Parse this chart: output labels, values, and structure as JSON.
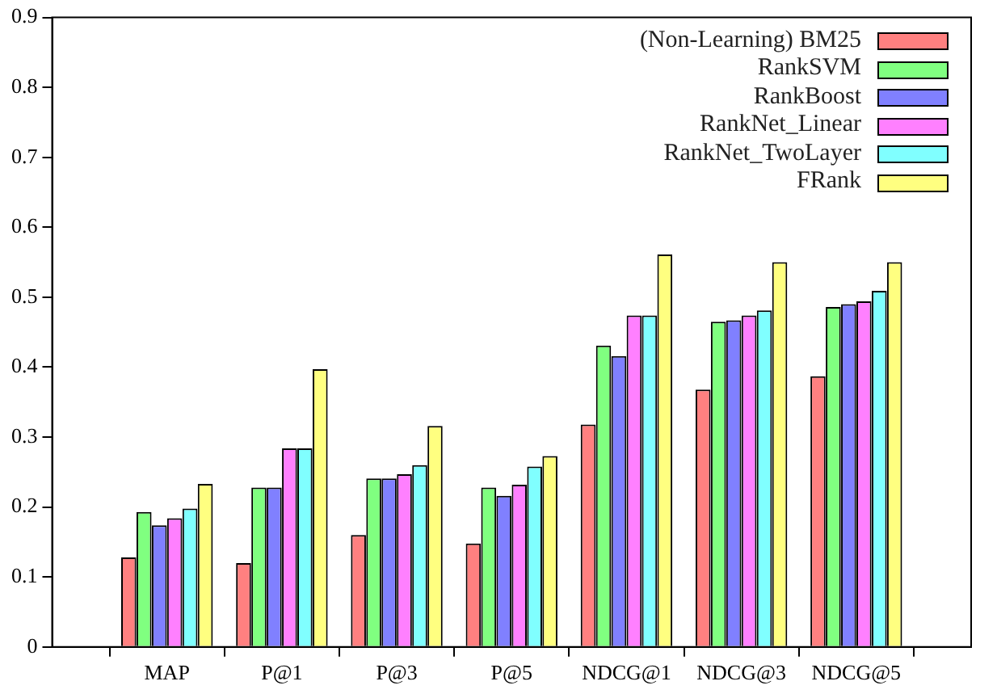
{
  "chart_data": {
    "type": "bar",
    "categories": [
      null,
      "MAP",
      "P@1",
      "P@3",
      "P@5",
      "NDCG@1",
      "NDCG@3",
      "NDCG@5",
      null
    ],
    "series": [
      {
        "name": "(Non-Learning) BM25",
        "color": "#ff8080",
        "values": [
          null,
          0.128,
          0.12,
          0.16,
          0.148,
          0.318,
          0.368,
          0.387,
          null
        ]
      },
      {
        "name": "RankSVM",
        "color": "#80ff80",
        "values": [
          null,
          0.193,
          0.228,
          0.241,
          0.228,
          0.431,
          0.465,
          0.486,
          null
        ]
      },
      {
        "name": "RankBoost",
        "color": "#8080ff",
        "values": [
          null,
          0.174,
          0.228,
          0.241,
          0.216,
          0.416,
          0.467,
          0.49,
          null
        ]
      },
      {
        "name": "RankNet_Linear",
        "color": "#ff80ff",
        "values": [
          null,
          0.184,
          0.284,
          0.247,
          0.232,
          0.474,
          0.474,
          0.494,
          null
        ]
      },
      {
        "name": "RankNet_TwoLayer",
        "color": "#80ffff",
        "values": [
          null,
          0.198,
          0.284,
          0.26,
          0.258,
          0.474,
          0.481,
          0.509,
          null
        ]
      },
      {
        "name": "FRank",
        "color": "#ffff80",
        "values": [
          null,
          0.233,
          0.397,
          0.316,
          0.273,
          0.561,
          0.55,
          0.55,
          null
        ]
      }
    ],
    "ylim": [
      0,
      0.9
    ],
    "yticks": [
      0,
      0.1,
      0.2,
      0.3,
      0.4,
      0.5,
      0.6,
      0.7,
      0.8,
      0.9
    ],
    "legend": "top right"
  }
}
